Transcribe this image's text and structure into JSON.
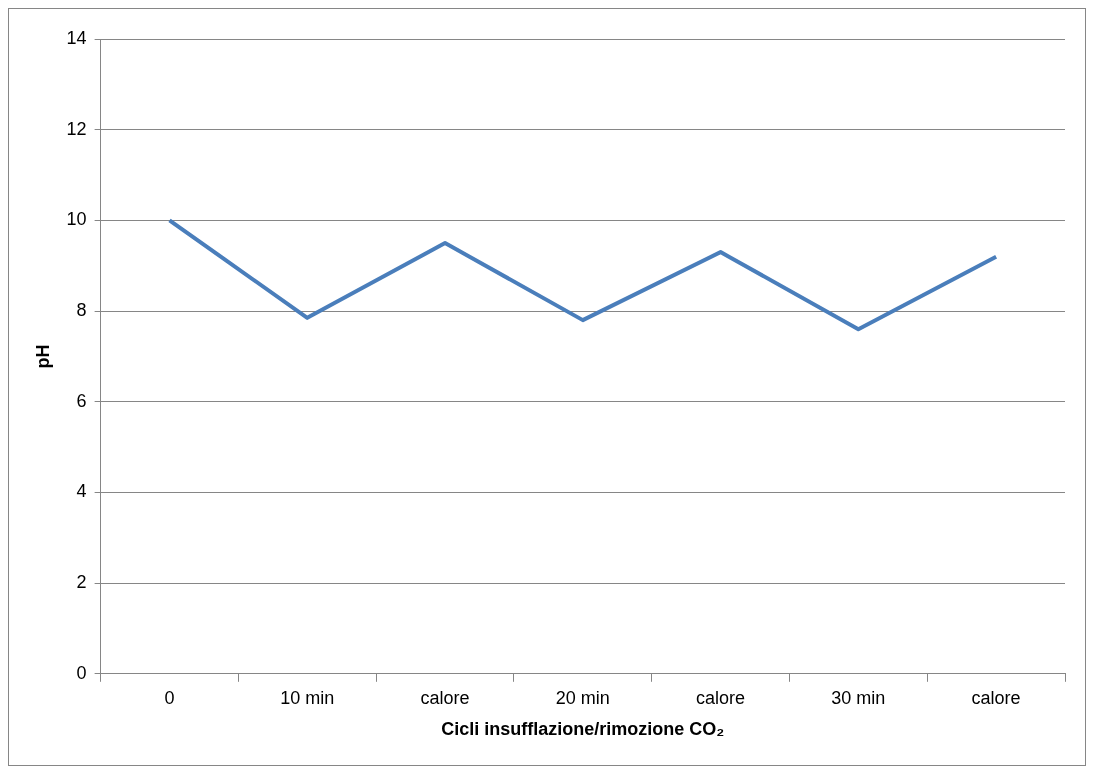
{
  "chart_data": {
    "type": "line",
    "xlabel": "Cicli insufflazione/rimozione CO₂",
    "ylabel": "pH",
    "categories": [
      "0",
      "10 min",
      "calore",
      "20 min",
      "calore",
      "30 min",
      "calore"
    ],
    "series": [
      {
        "color": "#4a7ebb",
        "values": [
          10,
          7.85,
          9.5,
          7.8,
          9.3,
          7.6,
          9.2
        ]
      }
    ],
    "ylim": [
      0,
      14
    ],
    "yticks": [
      0,
      2,
      4,
      6,
      8,
      10,
      12,
      14
    ],
    "grid": "y",
    "legend": false,
    "marker": "none"
  }
}
